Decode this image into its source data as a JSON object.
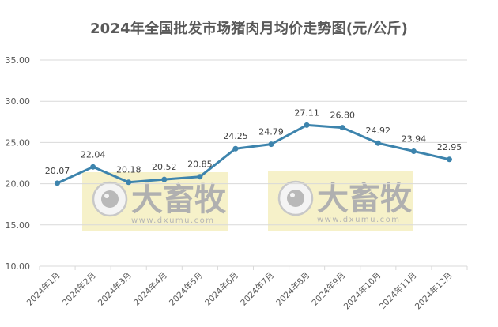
{
  "title": "2024年全国批发市场猪肉月均价走势图(元/公斤)",
  "watermark": {
    "brand": "大畜牧",
    "url": "www.dxumu.com"
  },
  "colors": {
    "line": "#3d84ad",
    "grid": "#d9d9d9",
    "watermark_bg": "#f5efbf"
  },
  "chart_data": {
    "type": "line",
    "title": "2024年全国批发市场猪肉月均价走势图(元/公斤)",
    "xlabel": "",
    "ylabel": "",
    "categories": [
      "2024年1月",
      "2024年2月",
      "2024年3月",
      "2024年4月",
      "2024年5月",
      "2024年6月",
      "2024年7月",
      "2024年8月",
      "2024年9月",
      "2024年10月",
      "2024年11月",
      "2024年12月"
    ],
    "series": [
      {
        "name": "猪肉月均价",
        "values": [
          20.07,
          22.04,
          20.18,
          20.52,
          20.85,
          24.25,
          24.79,
          27.11,
          26.8,
          24.92,
          23.94,
          22.95
        ]
      }
    ],
    "value_labels": [
      "20.07",
      "22.04",
      "20.18",
      "20.52",
      "20.85",
      "24.25",
      "24.79",
      "27.11",
      "26.80",
      "24.92",
      "23.94",
      "22.95"
    ],
    "ylim": [
      10,
      35
    ],
    "yticks": [
      "10.00",
      "15.00",
      "20.00",
      "25.00",
      "30.00",
      "35.00"
    ],
    "grid": true,
    "legend": "none"
  }
}
